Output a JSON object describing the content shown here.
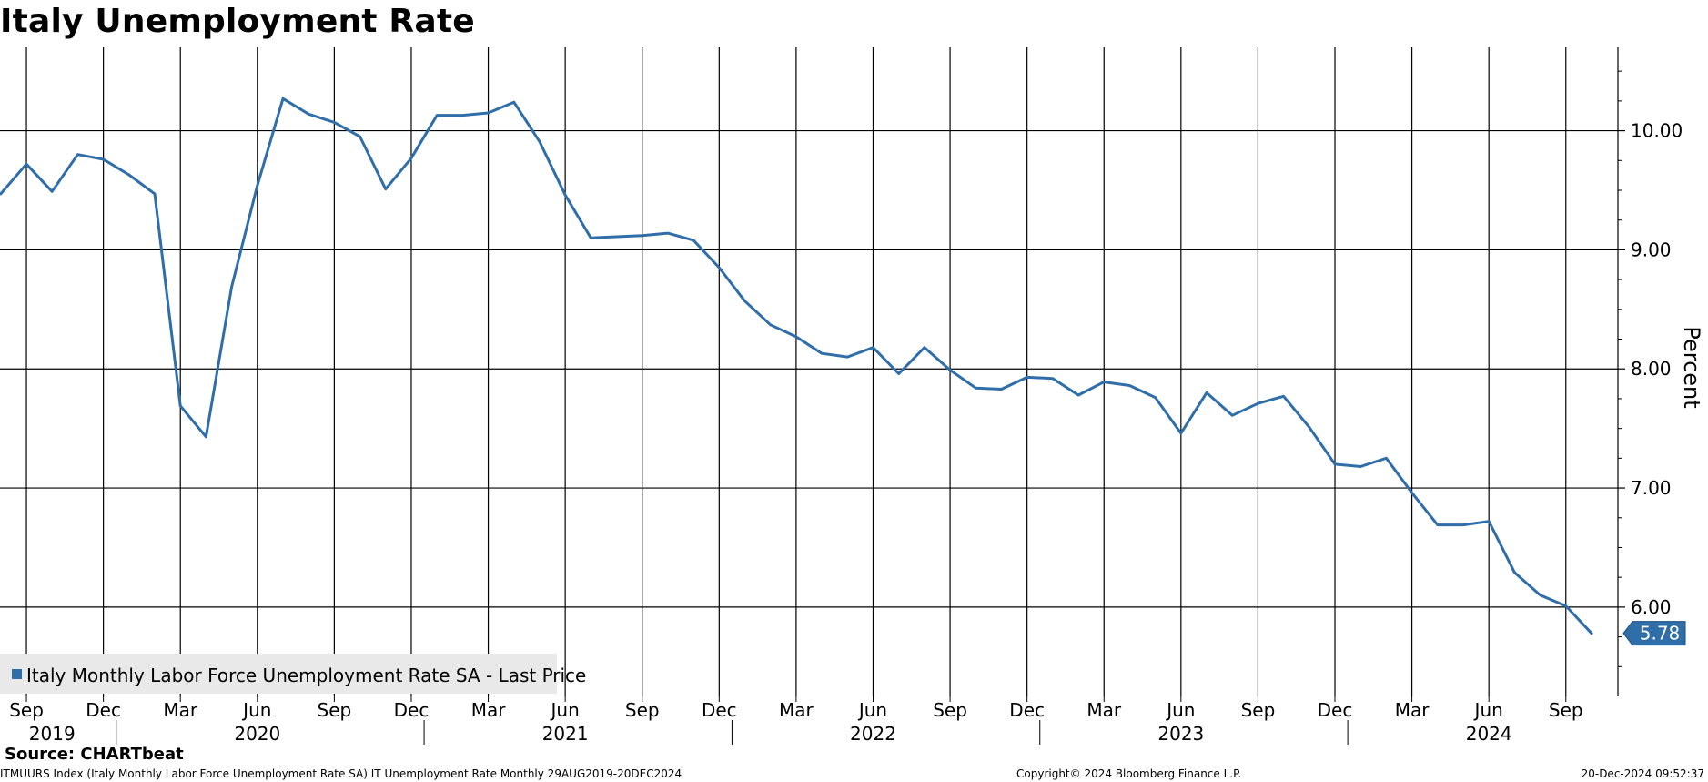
{
  "chart_data": {
    "type": "line",
    "title": "Italy Unemployment Rate",
    "ylabel": "Percent",
    "xlabel": "",
    "ylim": [
      5.25,
      10.7
    ],
    "y_ticks": [
      "6.00",
      "7.00",
      "8.00",
      "9.00",
      "10.00"
    ],
    "x_range": [
      "2019-08",
      "2024-11"
    ],
    "x_month_ticks": [
      {
        "date": "2019-09",
        "label": "Sep"
      },
      {
        "date": "2019-12",
        "label": "Dec"
      },
      {
        "date": "2020-03",
        "label": "Mar"
      },
      {
        "date": "2020-06",
        "label": "Jun"
      },
      {
        "date": "2020-09",
        "label": "Sep"
      },
      {
        "date": "2020-12",
        "label": "Dec"
      },
      {
        "date": "2021-03",
        "label": "Mar"
      },
      {
        "date": "2021-06",
        "label": "Jun"
      },
      {
        "date": "2021-09",
        "label": "Sep"
      },
      {
        "date": "2021-12",
        "label": "Dec"
      },
      {
        "date": "2022-03",
        "label": "Mar"
      },
      {
        "date": "2022-06",
        "label": "Jun"
      },
      {
        "date": "2022-09",
        "label": "Sep"
      },
      {
        "date": "2022-12",
        "label": "Dec"
      },
      {
        "date": "2023-03",
        "label": "Mar"
      },
      {
        "date": "2023-06",
        "label": "Jun"
      },
      {
        "date": "2023-09",
        "label": "Sep"
      },
      {
        "date": "2023-12",
        "label": "Dec"
      },
      {
        "date": "2024-03",
        "label": "Mar"
      },
      {
        "date": "2024-06",
        "label": "Jun"
      },
      {
        "date": "2024-09",
        "label": "Sep"
      }
    ],
    "x_year_labels": [
      {
        "label": "2019",
        "center": "2019-10"
      },
      {
        "label": "2020",
        "center": "2020-06"
      },
      {
        "label": "2021",
        "center": "2021-06"
      },
      {
        "label": "2022",
        "center": "2022-06"
      },
      {
        "label": "2023",
        "center": "2023-06"
      },
      {
        "label": "2024",
        "center": "2024-06"
      }
    ],
    "x_year_dividers": [
      "2020-01",
      "2021-01",
      "2022-01",
      "2023-01",
      "2024-01"
    ],
    "grid": true,
    "legend_position": "bottom-left",
    "series": [
      {
        "name": "Italy Monthly Labor Force Unemployment Rate SA - Last Price",
        "color": "#2f6ea8",
        "last_value_label": "5.78",
        "points": [
          [
            "2019-08",
            9.47
          ],
          [
            "2019-09",
            9.72
          ],
          [
            "2019-10",
            9.49
          ],
          [
            "2019-11",
            9.8
          ],
          [
            "2019-12",
            9.76
          ],
          [
            "2020-01",
            9.63
          ],
          [
            "2020-02",
            9.47
          ],
          [
            "2020-03",
            7.69
          ],
          [
            "2020-04",
            7.43
          ],
          [
            "2020-05",
            8.69
          ],
          [
            "2020-06",
            9.54
          ],
          [
            "2020-07",
            10.27
          ],
          [
            "2020-08",
            10.14
          ],
          [
            "2020-09",
            10.07
          ],
          [
            "2020-10",
            9.95
          ],
          [
            "2020-11",
            9.51
          ],
          [
            "2020-12",
            9.77
          ],
          [
            "2021-01",
            10.13
          ],
          [
            "2021-02",
            10.13
          ],
          [
            "2021-03",
            10.15
          ],
          [
            "2021-04",
            10.24
          ],
          [
            "2021-05",
            9.91
          ],
          [
            "2021-06",
            9.46
          ],
          [
            "2021-07",
            9.1
          ],
          [
            "2021-08",
            9.11
          ],
          [
            "2021-09",
            9.12
          ],
          [
            "2021-10",
            9.14
          ],
          [
            "2021-11",
            9.08
          ],
          [
            "2021-12",
            8.85
          ],
          [
            "2022-01",
            8.57
          ],
          [
            "2022-02",
            8.37
          ],
          [
            "2022-03",
            8.27
          ],
          [
            "2022-04",
            8.13
          ],
          [
            "2022-05",
            8.1
          ],
          [
            "2022-06",
            8.18
          ],
          [
            "2022-07",
            7.96
          ],
          [
            "2022-08",
            8.18
          ],
          [
            "2022-09",
            7.99
          ],
          [
            "2022-10",
            7.84
          ],
          [
            "2022-11",
            7.83
          ],
          [
            "2022-12",
            7.93
          ],
          [
            "2023-01",
            7.92
          ],
          [
            "2023-02",
            7.78
          ],
          [
            "2023-03",
            7.89
          ],
          [
            "2023-04",
            7.86
          ],
          [
            "2023-05",
            7.76
          ],
          [
            "2023-06",
            7.46
          ],
          [
            "2023-07",
            7.8
          ],
          [
            "2023-08",
            7.61
          ],
          [
            "2023-09",
            7.71
          ],
          [
            "2023-10",
            7.77
          ],
          [
            "2023-11",
            7.51
          ],
          [
            "2023-12",
            7.2
          ],
          [
            "2024-01",
            7.18
          ],
          [
            "2024-02",
            7.25
          ],
          [
            "2024-03",
            6.96
          ],
          [
            "2024-04",
            6.69
          ],
          [
            "2024-05",
            6.69
          ],
          [
            "2024-06",
            6.72
          ],
          [
            "2024-07",
            6.29
          ],
          [
            "2024-08",
            6.1
          ],
          [
            "2024-09",
            6.01
          ],
          [
            "2024-10",
            5.78
          ]
        ]
      }
    ]
  },
  "footer": {
    "source": "Source: CHARTbeat",
    "left": "ITMUURS Index (Italy Monthly Labor Force Unemployment Rate SA) IT Unemployment Rate  Monthly 29AUG2019-20DEC2024",
    "copyright": "Copyright© 2024 Bloomberg Finance L.P.",
    "timestamp": "20-Dec-2024 09:52:37"
  }
}
